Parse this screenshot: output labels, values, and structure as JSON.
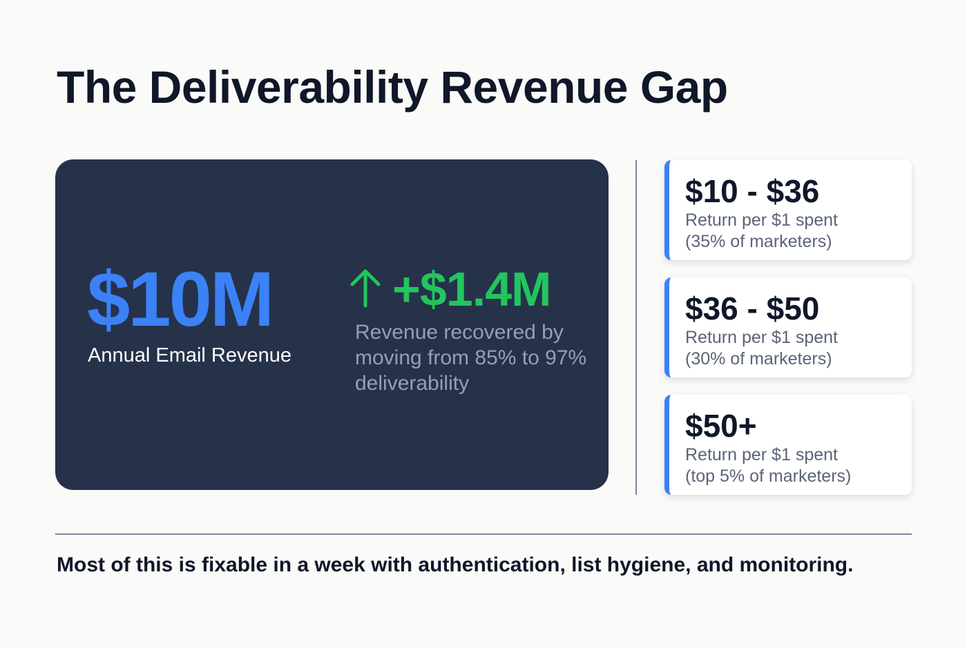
{
  "title": "The Deliverability Revenue Gap",
  "hero": {
    "revenue_value": "$10M",
    "revenue_label": "Annual Email Revenue",
    "gain_icon": "arrow-up-icon",
    "gain_value": "+$1.4M",
    "gain_description": "Revenue recovered by moving from 85% to 97% deliverability"
  },
  "cards": [
    {
      "value": "$10 - $36",
      "line1": "Return per $1 spent",
      "line2": "(35% of marketers)"
    },
    {
      "value": "$36 - $50",
      "line1": "Return per $1 spent",
      "line2": "(30% of marketers)"
    },
    {
      "value": "$50+",
      "line1": "Return per $1 spent",
      "line2": "(top 5% of marketers)"
    }
  ],
  "footer": "Most of this is fixable in a week with authentication, list hygiene, and monitoring.",
  "colors": {
    "accent_blue": "#3b82f6",
    "accent_green": "#22c55e",
    "panel": "#26324a"
  }
}
